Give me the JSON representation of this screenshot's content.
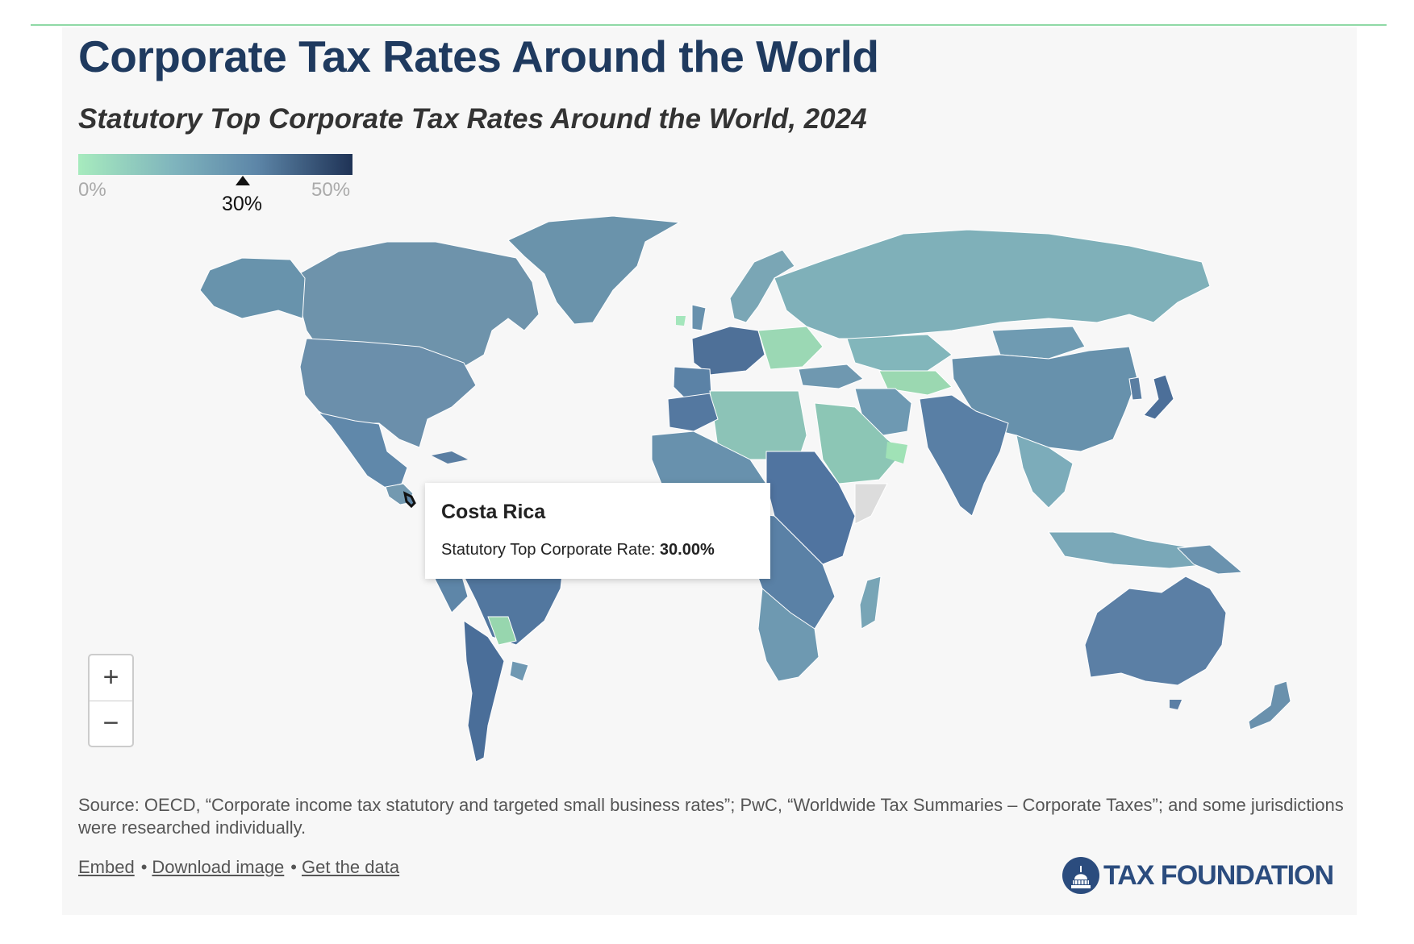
{
  "header": {
    "title": "Corporate Tax Rates Around the World",
    "subtitle": "Statutory Top Corporate Tax Rates Around the World, 2024"
  },
  "legend": {
    "min_label": "0%",
    "max_label": "50%",
    "min_value": 0,
    "max_value": 50,
    "current_label": "30%",
    "current_value": 30,
    "color_low": "#a7ebbe",
    "color_high": "#1f3356"
  },
  "tooltip": {
    "country": "Costa Rica",
    "metric_label": "Statutory Top Corporate Rate:",
    "metric_value": "30.00%"
  },
  "zoom": {
    "in_label": "+",
    "out_label": "−"
  },
  "footer": {
    "source": "Source: OECD, “Corporate income tax statutory and targeted small business rates”; PwC, “Worldwide Tax Summaries – Corporate Taxes”; and some jurisdictions were researched individually.",
    "links": {
      "embed": "Embed",
      "download": "Download image",
      "data": "Get the data"
    },
    "separator": "•",
    "brand": "TAX FOUNDATION"
  },
  "colors": {
    "title": "#1f3a5f",
    "panel_bg": "#f7f7f7",
    "no_data": "#dcdcdc",
    "rate_scale": [
      "#a7ebbe",
      "#7fb4bd",
      "#5d86a8",
      "#1f3356"
    ]
  }
}
